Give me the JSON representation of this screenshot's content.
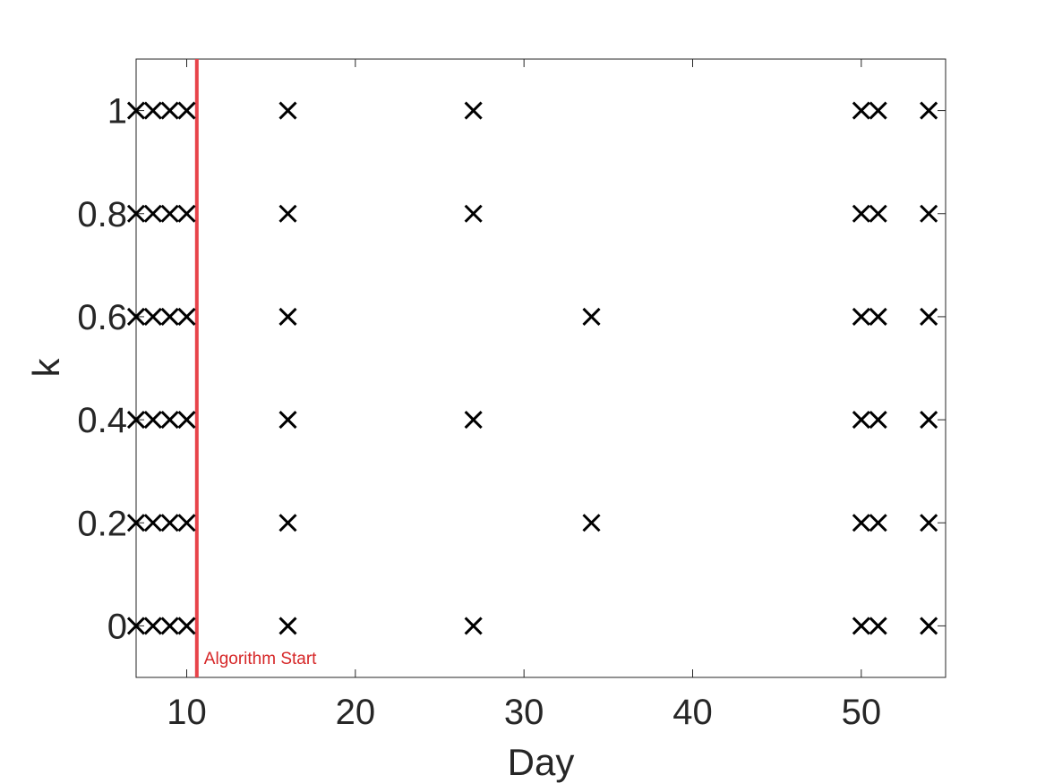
{
  "chart_data": {
    "type": "scatter",
    "title": "",
    "xlabel": "Day",
    "ylabel": "k",
    "xlim": [
      7,
      55
    ],
    "ylim": [
      -0.1,
      1.1
    ],
    "xticks": [
      10,
      20,
      30,
      40,
      50
    ],
    "yticks": [
      0,
      0.2,
      0.4,
      0.6,
      0.8,
      1
    ],
    "ytick_labels": [
      "0",
      "0.2",
      "0.4",
      "0.6",
      "0.8",
      "1"
    ],
    "marker": "x",
    "marker_color": "#000000",
    "grid": false,
    "series": [
      {
        "points": [
          [
            7,
            0
          ],
          [
            7,
            0.2
          ],
          [
            7,
            0.4
          ],
          [
            7,
            0.6
          ],
          [
            7,
            0.8
          ],
          [
            7,
            1
          ],
          [
            8,
            0
          ],
          [
            8,
            0.2
          ],
          [
            8,
            0.4
          ],
          [
            8,
            0.6
          ],
          [
            8,
            0.8
          ],
          [
            8,
            1
          ],
          [
            9,
            0
          ],
          [
            9,
            0.2
          ],
          [
            9,
            0.4
          ],
          [
            9,
            0.6
          ],
          [
            9,
            0.8
          ],
          [
            9,
            1
          ],
          [
            10,
            0
          ],
          [
            10,
            0.2
          ],
          [
            10,
            0.4
          ],
          [
            10,
            0.6
          ],
          [
            10,
            0.8
          ],
          [
            10,
            1
          ],
          [
            16,
            0
          ],
          [
            16,
            0.2
          ],
          [
            16,
            0.4
          ],
          [
            16,
            0.6
          ],
          [
            16,
            0.8
          ],
          [
            16,
            1
          ],
          [
            27,
            0
          ],
          [
            27,
            0.4
          ],
          [
            27,
            0.8
          ],
          [
            27,
            1
          ],
          [
            34,
            0.2
          ],
          [
            34,
            0.6
          ],
          [
            50,
            0
          ],
          [
            50,
            0.2
          ],
          [
            50,
            0.4
          ],
          [
            50,
            0.6
          ],
          [
            50,
            0.8
          ],
          [
            50,
            1
          ],
          [
            51,
            0
          ],
          [
            51,
            0.2
          ],
          [
            51,
            0.4
          ],
          [
            51,
            0.6
          ],
          [
            51,
            0.8
          ],
          [
            51,
            1
          ],
          [
            54,
            0
          ],
          [
            54,
            0.2
          ],
          [
            54,
            0.4
          ],
          [
            54,
            0.6
          ],
          [
            54,
            0.8
          ],
          [
            54,
            1
          ]
        ]
      }
    ],
    "annotations": [
      {
        "type": "vline",
        "x": 10.6,
        "color": "#e8434a",
        "label": "Algorithm Start",
        "label_color": "#d62728"
      }
    ]
  }
}
